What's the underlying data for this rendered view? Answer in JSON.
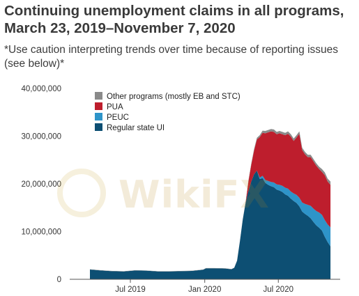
{
  "header": {
    "title": "Continuing unemployment claims in all programs, March 23, 2019–November 7, 2020",
    "subtitle": "*Use caution interpreting trends over time because of reporting issues (see below)*"
  },
  "watermark": {
    "text": "WikiFX"
  },
  "colors": {
    "regular_state_ui": "#0d4f73",
    "peuc": "#2e94c9",
    "pua": "#be1e2d",
    "other_programs": "#8a8a8a",
    "axis": "#555555",
    "gridline": "#cccccc"
  },
  "chart_data": {
    "type": "area",
    "stacked": true,
    "title": "Continuing unemployment claims in all programs, March 23, 2019–November 7, 2020",
    "subtitle": "*Use caution interpreting trends over time because of reporting issues (see below)*",
    "xlabel": "",
    "ylabel": "",
    "ylim": [
      0,
      40000000
    ],
    "xlim": [
      "2019-02-01",
      "2020-12-01"
    ],
    "y_ticks": [
      0,
      10000000,
      20000000,
      30000000,
      40000000
    ],
    "y_tick_labels": [
      "0",
      "10,000,000",
      "20,000,000",
      "30,000,000",
      "40,000,000"
    ],
    "x_ticks": [
      "2019-07-01",
      "2020-01-01",
      "2020-07-01"
    ],
    "x_tick_labels": [
      "Jul 2019",
      "Jan 2020",
      "Jul 2020"
    ],
    "gridlines": false,
    "legend_position": "top-left",
    "legend": [
      "Other programs (mostly EB and STC)",
      "PUA",
      "PEUC",
      "Regular state UI"
    ],
    "x": [
      "2019-03-23",
      "2019-04-20",
      "2019-05-18",
      "2019-06-15",
      "2019-07-13",
      "2019-08-10",
      "2019-09-07",
      "2019-10-05",
      "2019-11-02",
      "2019-11-30",
      "2019-12-28",
      "2020-01-04",
      "2020-01-25",
      "2020-02-22",
      "2020-03-07",
      "2020-03-14",
      "2020-03-21",
      "2020-03-28",
      "2020-04-04",
      "2020-04-11",
      "2020-04-18",
      "2020-04-25",
      "2020-05-02",
      "2020-05-09",
      "2020-05-16",
      "2020-05-23",
      "2020-05-30",
      "2020-06-06",
      "2020-06-13",
      "2020-06-20",
      "2020-06-27",
      "2020-07-04",
      "2020-07-11",
      "2020-07-18",
      "2020-07-25",
      "2020-08-01",
      "2020-08-08",
      "2020-08-15",
      "2020-08-22",
      "2020-08-29",
      "2020-09-05",
      "2020-09-12",
      "2020-09-19",
      "2020-09-26",
      "2020-10-03",
      "2020-10-10",
      "2020-10-17",
      "2020-10-24",
      "2020-10-31",
      "2020-11-07"
    ],
    "series": [
      {
        "name": "Regular state UI",
        "color": "#0d4f73",
        "values": [
          2050000,
          1850000,
          1700000,
          1650000,
          1850000,
          1800000,
          1650000,
          1650000,
          1700000,
          1750000,
          2000000,
          2300000,
          2300000,
          2250000,
          2100000,
          2400000,
          3900000,
          8000000,
          12500000,
          16000000,
          18500000,
          20500000,
          22000000,
          22800000,
          21000000,
          21200000,
          20200000,
          19800000,
          19500000,
          19300000,
          18800000,
          18600000,
          18300000,
          17800000,
          17500000,
          16900000,
          16400000,
          16000000,
          15300000,
          14200000,
          13700000,
          13300000,
          12800000,
          12000000,
          11300000,
          10800000,
          10200000,
          8900000,
          7800000,
          6900000
        ]
      },
      {
        "name": "PEUC",
        "color": "#2e94c9",
        "values": [
          0,
          0,
          0,
          0,
          0,
          0,
          0,
          0,
          0,
          0,
          0,
          0,
          0,
          0,
          0,
          0,
          0,
          0,
          0,
          0,
          0,
          0,
          0,
          0,
          300000,
          500000,
          600000,
          800000,
          900000,
          1000000,
          1100000,
          1200000,
          1300000,
          1400000,
          1500000,
          1500000,
          1600000,
          1700000,
          1800000,
          1900000,
          2100000,
          2300000,
          2600000,
          2800000,
          3000000,
          3200000,
          3300000,
          3500000,
          3700000,
          4000000
        ]
      },
      {
        "name": "PUA",
        "color": "#be1e2d",
        "values": [
          0,
          0,
          0,
          0,
          0,
          0,
          0,
          0,
          0,
          0,
          0,
          0,
          0,
          0,
          0,
          0,
          0,
          0,
          0,
          0,
          2000000,
          3500000,
          5000000,
          6500000,
          8500000,
          9000000,
          9800000,
          10200000,
          10600000,
          10600000,
          10500000,
          10800000,
          10800000,
          11000000,
          11500000,
          11500000,
          11000000,
          12000000,
          13400000,
          11000000,
          10400000,
          10000000,
          10200000,
          9900000,
          9500000,
          9100000,
          9000000,
          9400000,
          9000000,
          8900000
        ]
      },
      {
        "name": "Other programs (mostly EB and STC)",
        "color": "#8a8a8a",
        "values": [
          50000,
          50000,
          50000,
          50000,
          50000,
          50000,
          50000,
          50000,
          50000,
          50000,
          50000,
          50000,
          50000,
          50000,
          50000,
          50000,
          50000,
          50000,
          100000,
          150000,
          200000,
          250000,
          300000,
          350000,
          400000,
          450000,
          500000,
          500000,
          500000,
          500000,
          500000,
          500000,
          500000,
          500000,
          500000,
          500000,
          500000,
          500000,
          500000,
          500000,
          500000,
          500000,
          500000,
          500000,
          500000,
          500000,
          600000,
          600000,
          600000,
          700000
        ]
      }
    ]
  }
}
